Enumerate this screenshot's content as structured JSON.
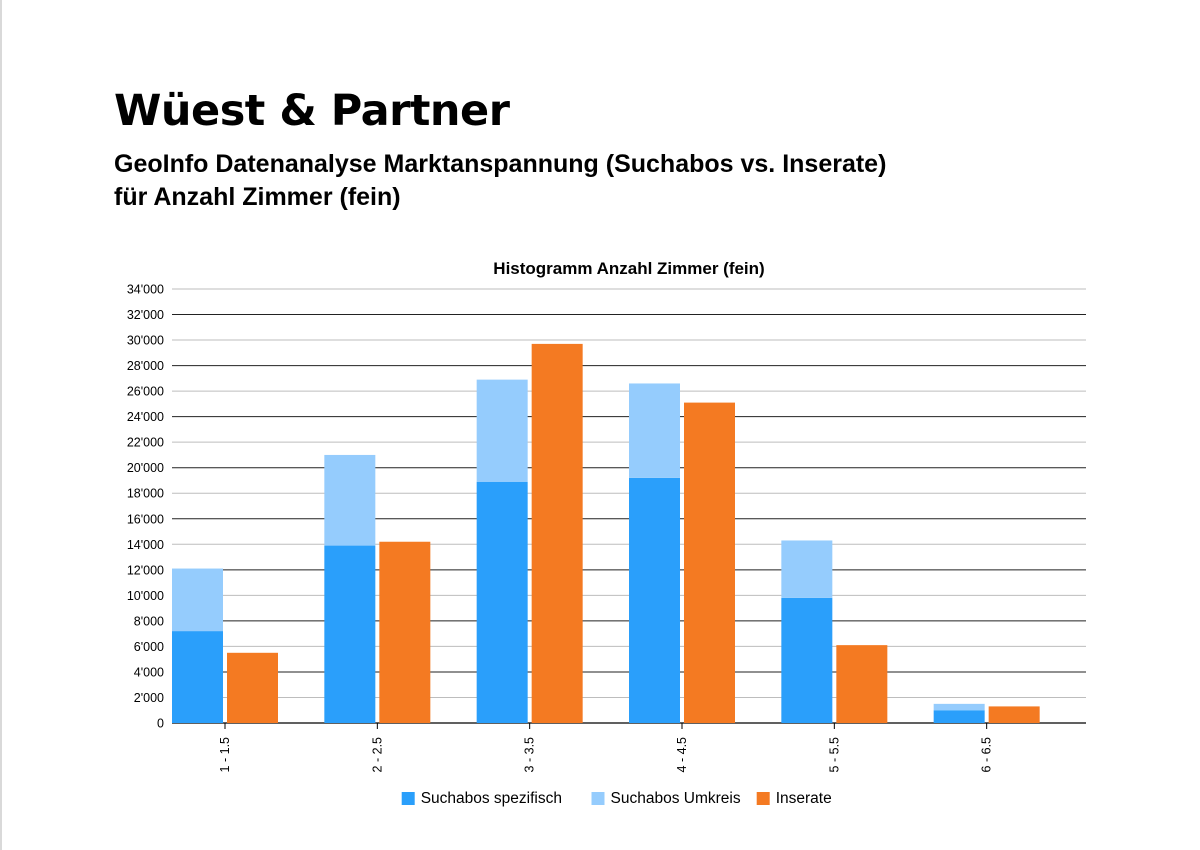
{
  "header": {
    "brand": "Wüest & Partner",
    "subtitle_line1": "GeoInfo Datenanalyse Marktanspannung (Suchabos vs. Inserate)",
    "subtitle_line2": "für Anzahl Zimmer (fein)"
  },
  "chart_data": {
    "type": "bar",
    "title": "Histogramm Anzahl Zimmer (fein)",
    "xlabel": "",
    "ylabel": "",
    "categories": [
      "1 - 1.5",
      "2 - 2.5",
      "3 - 3.5",
      "4 - 4.5",
      "5 - 5.5",
      "6 - 6.5"
    ],
    "ylim": [
      0,
      34000
    ],
    "y_ticks": [
      0,
      2000,
      4000,
      6000,
      8000,
      10000,
      12000,
      14000,
      16000,
      18000,
      20000,
      22000,
      24000,
      26000,
      28000,
      30000,
      32000,
      34000
    ],
    "y_tick_labels": [
      "0",
      "2'000",
      "4'000",
      "6'000",
      "8'000",
      "10'000",
      "12'000",
      "14'000",
      "16'000",
      "18'000",
      "20'000",
      "22'000",
      "24'000",
      "26'000",
      "28'000",
      "30'000",
      "32'000",
      "34'000"
    ],
    "grid": true,
    "legend_position": "bottom",
    "stacked_groups": [
      [
        "Suchabos spezifisch",
        "Suchabos Umkreis"
      ],
      [
        "Inserate"
      ]
    ],
    "series": [
      {
        "name": "Suchabos spezifisch",
        "color": "#2a9ffb",
        "values": [
          7200,
          13900,
          18900,
          19200,
          9800,
          1000
        ]
      },
      {
        "name": "Suchabos Umkreis",
        "color": "#95ccfd",
        "values": [
          4900,
          7100,
          8000,
          7400,
          4500,
          500
        ]
      },
      {
        "name": "Inserate",
        "color": "#f47a22",
        "values": [
          5500,
          14200,
          29700,
          25100,
          6100,
          1300
        ]
      }
    ]
  }
}
